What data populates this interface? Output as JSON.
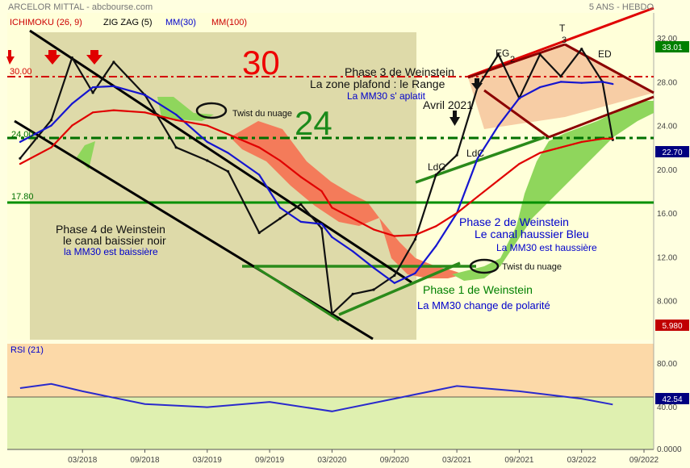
{
  "header": {
    "title": "ARCELOR MITTAL - abcbourse.com",
    "period": "5 ANS - HEBDO"
  },
  "legend": [
    {
      "label": "ICHIMOKU (26, 9)",
      "color": "#cc0000"
    },
    {
      "label": "ZIG ZAG (5)",
      "color": "#000000"
    },
    {
      "label": "MM(30)",
      "color": "#0000cc"
    },
    {
      "label": "MM(100)",
      "color": "#cc0000"
    }
  ],
  "price_axis": {
    "ticks": [
      "32.00",
      "28.00",
      "24.00",
      "20.00",
      "16.00",
      "12.00",
      "8.000"
    ],
    "ylim": [
      4.5,
      34
    ],
    "high_badge": "33.01",
    "last_badge": "22.70",
    "low_badge": "5.980"
  },
  "rsi_axis": {
    "title": "RSI (21)",
    "ticks": [
      "80.00",
      "40.00",
      "0.0000"
    ],
    "value_badge": "42.54"
  },
  "x_axis": {
    "ticks": [
      "03/2018",
      "09/2018",
      "03/2019",
      "09/2019",
      "03/2020",
      "09/2020",
      "03/2021",
      "09/2021",
      "03/2022",
      "09/2022"
    ]
  },
  "levels": {
    "l30": "30.00",
    "l24": "24.00",
    "l17": "17.80",
    "big30": "30",
    "big24": "24"
  },
  "annotations": {
    "phase4_title": "Phase 4 de Weinstein",
    "phase4_sub": "le canal baissier noir",
    "phase4_mm": "la MM30 est baissière",
    "twist1": "Twist du nuage",
    "twist2": "Twist du nuage",
    "phase2_title": "Phase 2 de Weinstein",
    "phase2_sub": "Le canal haussier Bleu",
    "phase2_mm": "La MM30 est haussière",
    "phase1_title": "Phase 1 de Weinstein",
    "phase1_mm": "La MM30 change de polarité",
    "phase3_title": "Phase 3 de Weinstein",
    "phase3_sub": "La zone plafond : le Range",
    "phase3_mm": "La MM30 s' aplatit",
    "avril": "Avril 2021",
    "ldc1": "LdC",
    "ldc2": "LdC",
    "eg": "EG",
    "eg_n": "2",
    "t": "T",
    "t_n": "3",
    "ed": "ED"
  },
  "chart_data": {
    "type": "line",
    "title": "ARCELOR MITTAL - abcbourse.com",
    "timeframe": "5 ANS - HEBDO",
    "x": [
      "2017-09",
      "2017-12",
      "2018-02",
      "2018-04",
      "2018-06",
      "2018-09",
      "2018-12",
      "2019-03",
      "2019-05",
      "2019-08",
      "2019-10",
      "2019-12",
      "2020-02",
      "2020-03",
      "2020-05",
      "2020-07",
      "2020-09",
      "2020-11",
      "2021-01",
      "2021-03",
      "2021-05",
      "2021-07",
      "2021-09",
      "2021-11",
      "2022-01",
      "2022-03",
      "2022-05",
      "2022-06"
    ],
    "series": [
      {
        "name": "Cours",
        "values": [
          21.0,
          24.5,
          30.2,
          27.0,
          29.8,
          26.8,
          22.0,
          20.8,
          19.8,
          14.2,
          15.5,
          16.8,
          14.6,
          6.8,
          8.6,
          9.0,
          10.3,
          13.6,
          19.5,
          21.3,
          27.5,
          30.5,
          26.5,
          30.5,
          28.5,
          31.0,
          28.0,
          22.7
        ]
      },
      {
        "name": "MM(30)",
        "values": [
          22.5,
          24.0,
          26.0,
          27.5,
          27.6,
          26.8,
          25.0,
          22.5,
          21.5,
          19.5,
          16.5,
          15.2,
          15.0,
          13.8,
          12.5,
          11.0,
          9.6,
          10.5,
          13.0,
          16.0,
          21.0,
          24.0,
          26.5,
          27.5,
          28.0,
          27.9,
          28.0,
          27.8
        ]
      },
      {
        "name": "MM(100)",
        "values": [
          20.5,
          22.0,
          24.0,
          25.2,
          25.4,
          25.2,
          24.5,
          24.0,
          23.2,
          22.0,
          20.8,
          19.3,
          18.0,
          16.5,
          15.5,
          14.5,
          13.9,
          14.0,
          14.8,
          16.0,
          17.5,
          19.0,
          20.5,
          21.5,
          22.0,
          22.5,
          22.8,
          22.8
        ]
      }
    ],
    "rsi": {
      "name": "RSI (21)",
      "x": [
        "2017-09",
        "2017-12",
        "2018-03",
        "2018-09",
        "2019-03",
        "2019-09",
        "2020-03",
        "2020-09",
        "2021-03",
        "2021-09",
        "2022-03",
        "2022-06"
      ],
      "values": [
        58,
        62,
        55,
        43,
        40,
        45,
        36,
        48,
        60,
        55,
        48,
        42.5
      ]
    },
    "levels": [
      30.0,
      24.0,
      17.8
    ],
    "ylim": [
      4.5,
      34
    ],
    "xlabel": "",
    "ylabel": "",
    "grid": false
  }
}
